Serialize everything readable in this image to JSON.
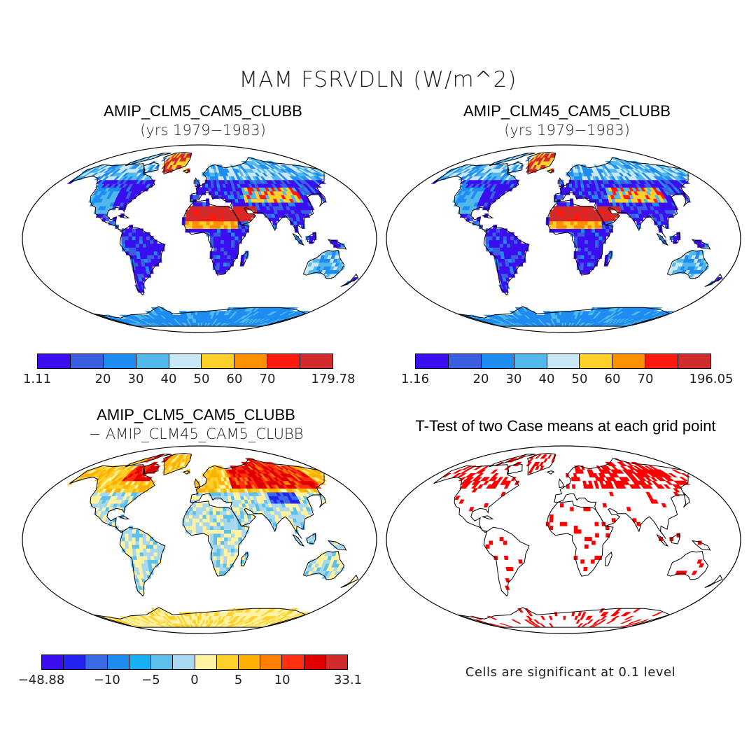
{
  "title": "MAM FSRVDLN (W/m^2)",
  "panels": [
    {
      "id": "tl",
      "title": "AMIP_CLM5_CAM5_CLUBB",
      "subtitle": "(yrs 1979−1983)",
      "colorbar": {
        "colors": [
          "#3b0ef0",
          "#3a5fe0",
          "#1e8cf0",
          "#50b8ea",
          "#c8e8f5",
          "#ffd02a",
          "#ff9000",
          "#ff1a10",
          "#d22b2b"
        ],
        "labels": [
          "1.11",
          "20",
          "30",
          "40",
          "50",
          "60",
          "70",
          "179.78"
        ]
      }
    },
    {
      "id": "tr",
      "title": "AMIP_CLM45_CAM5_CLUBB",
      "subtitle": "(yrs 1979−1983)",
      "colorbar": {
        "colors": [
          "#3b0ef0",
          "#3a5fe0",
          "#1e8cf0",
          "#50b8ea",
          "#c8e8f5",
          "#ffd02a",
          "#ff9000",
          "#ff1a10",
          "#d22b2b"
        ],
        "labels": [
          "1.16",
          "20",
          "30",
          "40",
          "50",
          "60",
          "70",
          "196.05"
        ]
      }
    },
    {
      "id": "bl",
      "title": "AMIP_CLM5_CAM5_CLUBB",
      "subtitle": "− AMIP_CLM45_CAM5_CLUBB",
      "colorbar": {
        "colors": [
          "#3b0ef0",
          "#2424f0",
          "#3a6ae6",
          "#1e8cf0",
          "#18b0f0",
          "#5cc0ea",
          "#a8d8ef",
          "#fff2a0",
          "#ffd02a",
          "#ffb000",
          "#ff8000",
          "#ff3010",
          "#e00000",
          "#d22b2b"
        ],
        "labels": [
          "−48.88",
          "−10",
          "−5",
          "0",
          "5",
          "10",
          "33.1"
        ]
      }
    },
    {
      "id": "br",
      "title": "T-Test of two Case means at each grid point",
      "note": "Cells are significant at 0.1 level"
    }
  ]
}
